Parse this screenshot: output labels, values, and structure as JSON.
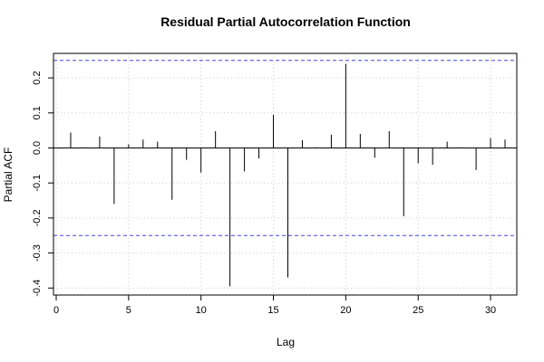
{
  "chart_data": {
    "type": "bar",
    "title": "Residual Partial Autocorrelation Function",
    "xlabel": "Lag",
    "ylabel": "Partial ACF",
    "xlim": [
      0,
      32
    ],
    "ylim": [
      -0.42,
      0.27
    ],
    "x_ticks": [
      0,
      5,
      10,
      15,
      20,
      25,
      30
    ],
    "x_tick_labels": [
      "0",
      "5",
      "10",
      "15",
      "20",
      "25",
      "30"
    ],
    "y_ticks": [
      -0.4,
      -0.3,
      -0.2,
      -0.1,
      0.0,
      0.1,
      0.2
    ],
    "y_tick_labels": [
      "-0.4",
      "-0.3",
      "-0.2",
      "-0.1",
      "0.0",
      "0.1",
      "0.2"
    ],
    "grid": true,
    "lags": [
      1,
      2,
      3,
      4,
      5,
      6,
      7,
      8,
      9,
      10,
      11,
      12,
      13,
      14,
      15,
      16,
      17,
      18,
      19,
      20,
      21,
      22,
      23,
      24,
      25,
      26,
      27,
      28,
      29,
      30,
      31
    ],
    "values": [
      0.044,
      0.002,
      0.033,
      -0.16,
      0.01,
      0.024,
      0.018,
      -0.148,
      -0.034,
      -0.07,
      0.048,
      -0.395,
      -0.067,
      -0.03,
      0.095,
      -0.37,
      0.022,
      0.002,
      0.038,
      0.24,
      0.04,
      -0.028,
      0.048,
      -0.195,
      -0.044,
      -0.048,
      0.018,
      0.002,
      -0.063,
      0.028,
      0.024
    ],
    "confidence_bounds": [
      0.25,
      -0.25
    ],
    "colors": {
      "bars": "#000000",
      "bounds": "#4444dd",
      "grid": "#cccccc",
      "axis": "#000000"
    }
  }
}
